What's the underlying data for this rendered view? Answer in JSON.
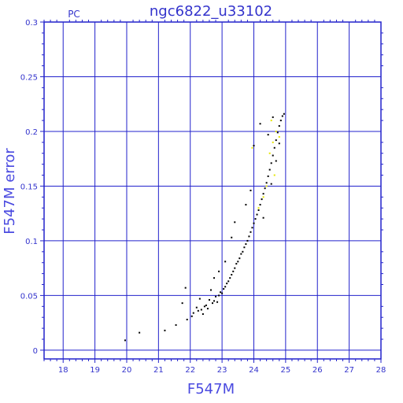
{
  "chart_data": {
    "type": "scatter",
    "title": "ngc6822_u33102",
    "tag": "PC",
    "xlabel": "F547M",
    "ylabel": "F547M error",
    "xlim": [
      17.4,
      28.0
    ],
    "ylim": [
      -0.008,
      0.3
    ],
    "x_ticks": [
      18,
      19,
      20,
      21,
      22,
      23,
      24,
      25,
      26,
      27,
      28
    ],
    "y_ticks": [
      0,
      0.05,
      0.1,
      0.15,
      0.2,
      0.25,
      0.3
    ],
    "y_tick_labels": [
      "0",
      "0.05",
      "0.1",
      "0.15",
      "0.2",
      "0.25",
      "0.3"
    ],
    "grid": true,
    "colors": {
      "frame": "#2222cc",
      "grid": "#2222cc",
      "text": "#3333cc",
      "points": "#000000",
      "highlight": "#e6e600"
    },
    "series": [
      {
        "color": "#000000",
        "points": [
          [
            19.95,
            0.009
          ],
          [
            20.4,
            0.016
          ],
          [
            21.2,
            0.018
          ],
          [
            21.55,
            0.023
          ],
          [
            21.75,
            0.043
          ],
          [
            21.85,
            0.057
          ],
          [
            21.9,
            0.028
          ],
          [
            22.05,
            0.031
          ],
          [
            22.1,
            0.034
          ],
          [
            22.2,
            0.039
          ],
          [
            22.25,
            0.036
          ],
          [
            22.3,
            0.047
          ],
          [
            22.35,
            0.037
          ],
          [
            22.4,
            0.033
          ],
          [
            22.45,
            0.04
          ],
          [
            22.5,
            0.041
          ],
          [
            22.55,
            0.038
          ],
          [
            22.6,
            0.046
          ],
          [
            22.65,
            0.055
          ],
          [
            22.7,
            0.043
          ],
          [
            22.75,
            0.045
          ],
          [
            22.8,
            0.049
          ],
          [
            22.85,
            0.044
          ],
          [
            22.9,
            0.05
          ],
          [
            22.95,
            0.053
          ],
          [
            23.0,
            0.052
          ],
          [
            23.05,
            0.056
          ],
          [
            23.1,
            0.058
          ],
          [
            23.15,
            0.061
          ],
          [
            23.2,
            0.063
          ],
          [
            23.25,
            0.066
          ],
          [
            23.3,
            0.069
          ],
          [
            23.35,
            0.072
          ],
          [
            23.4,
            0.075
          ],
          [
            23.45,
            0.079
          ],
          [
            23.5,
            0.081
          ],
          [
            23.55,
            0.084
          ],
          [
            23.6,
            0.088
          ],
          [
            23.65,
            0.09
          ],
          [
            23.7,
            0.094
          ],
          [
            23.75,
            0.097
          ],
          [
            23.8,
            0.1
          ],
          [
            23.85,
            0.104
          ],
          [
            23.9,
            0.108
          ],
          [
            23.95,
            0.112
          ],
          [
            24.0,
            0.116
          ],
          [
            24.05,
            0.12
          ],
          [
            24.1,
            0.124
          ],
          [
            24.15,
            0.128
          ],
          [
            24.2,
            0.133
          ],
          [
            24.25,
            0.138
          ],
          [
            24.3,
            0.143
          ],
          [
            24.35,
            0.148
          ],
          [
            24.4,
            0.153
          ],
          [
            24.45,
            0.159
          ],
          [
            24.5,
            0.165
          ],
          [
            24.55,
            0.171
          ],
          [
            24.6,
            0.178
          ],
          [
            24.65,
            0.185
          ],
          [
            24.7,
            0.192
          ],
          [
            24.75,
            0.199
          ],
          [
            24.8,
            0.205
          ],
          [
            24.85,
            0.21
          ],
          [
            24.9,
            0.214
          ],
          [
            24.95,
            0.216
          ],
          [
            23.4,
            0.117
          ],
          [
            23.3,
            0.103
          ],
          [
            24.0,
            0.187
          ],
          [
            24.2,
            0.207
          ],
          [
            23.9,
            0.146
          ],
          [
            23.1,
            0.081
          ],
          [
            22.75,
            0.066
          ],
          [
            22.9,
            0.072
          ],
          [
            23.75,
            0.133
          ],
          [
            24.45,
            0.197
          ],
          [
            24.6,
            0.213
          ],
          [
            24.3,
            0.121
          ],
          [
            24.55,
            0.152
          ],
          [
            24.7,
            0.173
          ],
          [
            24.8,
            0.189
          ]
        ]
      },
      {
        "color": "#e6e600",
        "points": [
          [
            23.95,
            0.185
          ],
          [
            24.15,
            0.13
          ],
          [
            24.3,
            0.14
          ],
          [
            24.4,
            0.15
          ],
          [
            24.5,
            0.18
          ],
          [
            24.6,
            0.19
          ],
          [
            24.7,
            0.2
          ],
          [
            24.8,
            0.195
          ],
          [
            24.65,
            0.16
          ],
          [
            24.55,
            0.21
          ]
        ]
      }
    ]
  }
}
